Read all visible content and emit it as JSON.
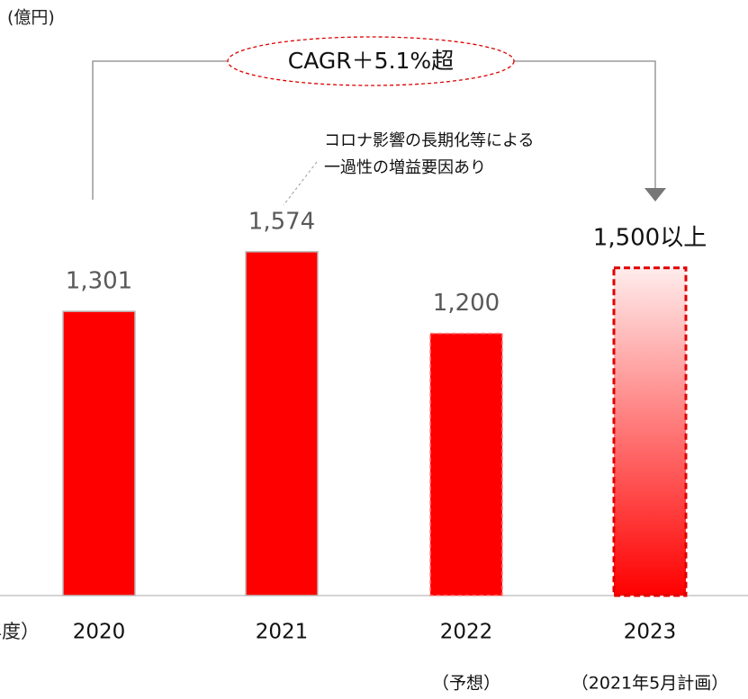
{
  "chart_data": {
    "type": "bar",
    "unit_label": "(億円)",
    "x_axis_label": "（年度）",
    "annotation": "CAGR＋5.1%超",
    "note_lines": [
      "コロナ影響の長期化等による",
      "一過性の増益要因あり"
    ],
    "categories": [
      "2020",
      "2021",
      "2022",
      "2023"
    ],
    "category_notes": [
      null,
      null,
      "（予想）",
      "（2021年5月計画）"
    ],
    "values": [
      1301,
      1574,
      1200,
      1500
    ],
    "value_labels": [
      "1,301",
      "1,574",
      "1,200",
      "1,500以上"
    ],
    "bar_styles": [
      "solid",
      "solid",
      "dashed",
      "gradient"
    ],
    "color": "#ff0000",
    "ylim": [
      0,
      1600
    ]
  }
}
